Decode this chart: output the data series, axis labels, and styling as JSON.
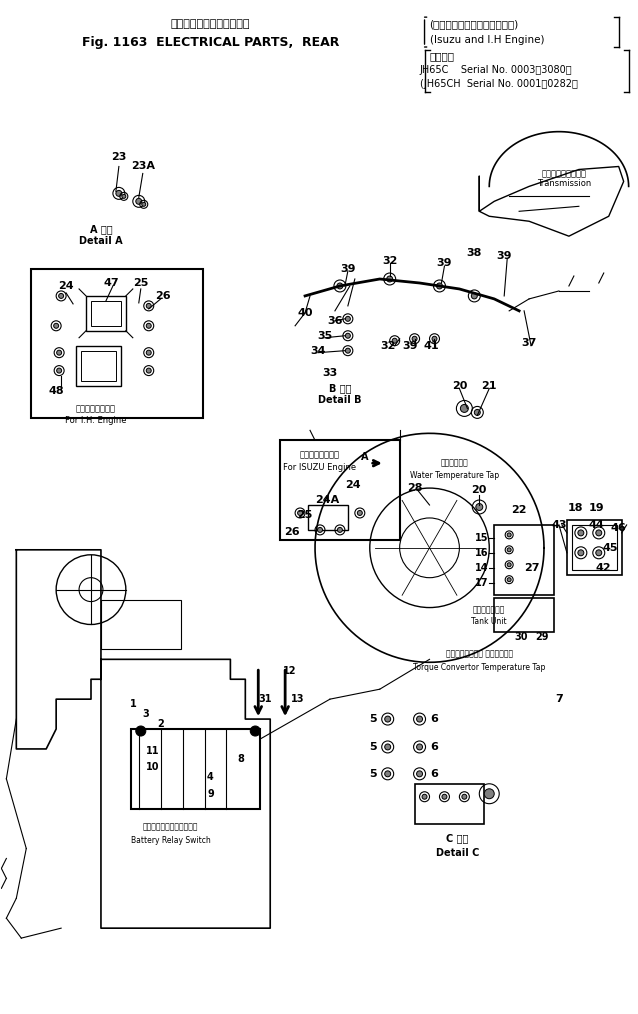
{
  "title_line1_jp": "エレクトリカルパーツ　後",
  "title_line1_en": "Fig. 1163  ELECTRICAL PARTS,  REAR",
  "bracket_line1": "(いずおよびインタエンジン)",
  "bracket_line2": "(Isuzu and I.H Engine)",
  "bracket_line3": "適用号機",
  "bracket_line4": "JH65C    Serial No. 0003～3080）",
  "bracket_line5": "(JH65CH  Serial No. 0001～0282）",
  "bg": "#ffffff",
  "lc": "#000000",
  "fig_w": 6.38,
  "fig_h": 10.14,
  "dpi": 100
}
